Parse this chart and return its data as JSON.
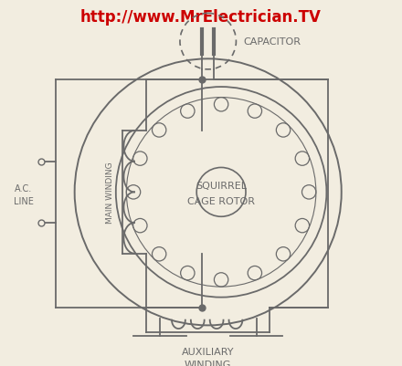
{
  "bg_color": "#f2ede0",
  "line_color": "#6a6a6a",
  "title_text": "http://www.MrElectrician.TV",
  "title_color": "#cc0000",
  "title_fontsize": 12,
  "squirrel_text": [
    "SQUIRREL",
    "CAGE ROTOR"
  ],
  "main_winding_text": "MAIN WINDING",
  "auxiliary_winding_text": [
    "AUXILIARY",
    "WINDING"
  ],
  "capacitor_text": "CAPACITOR",
  "ac_line_text": [
    "A.C.",
    "LINE"
  ]
}
